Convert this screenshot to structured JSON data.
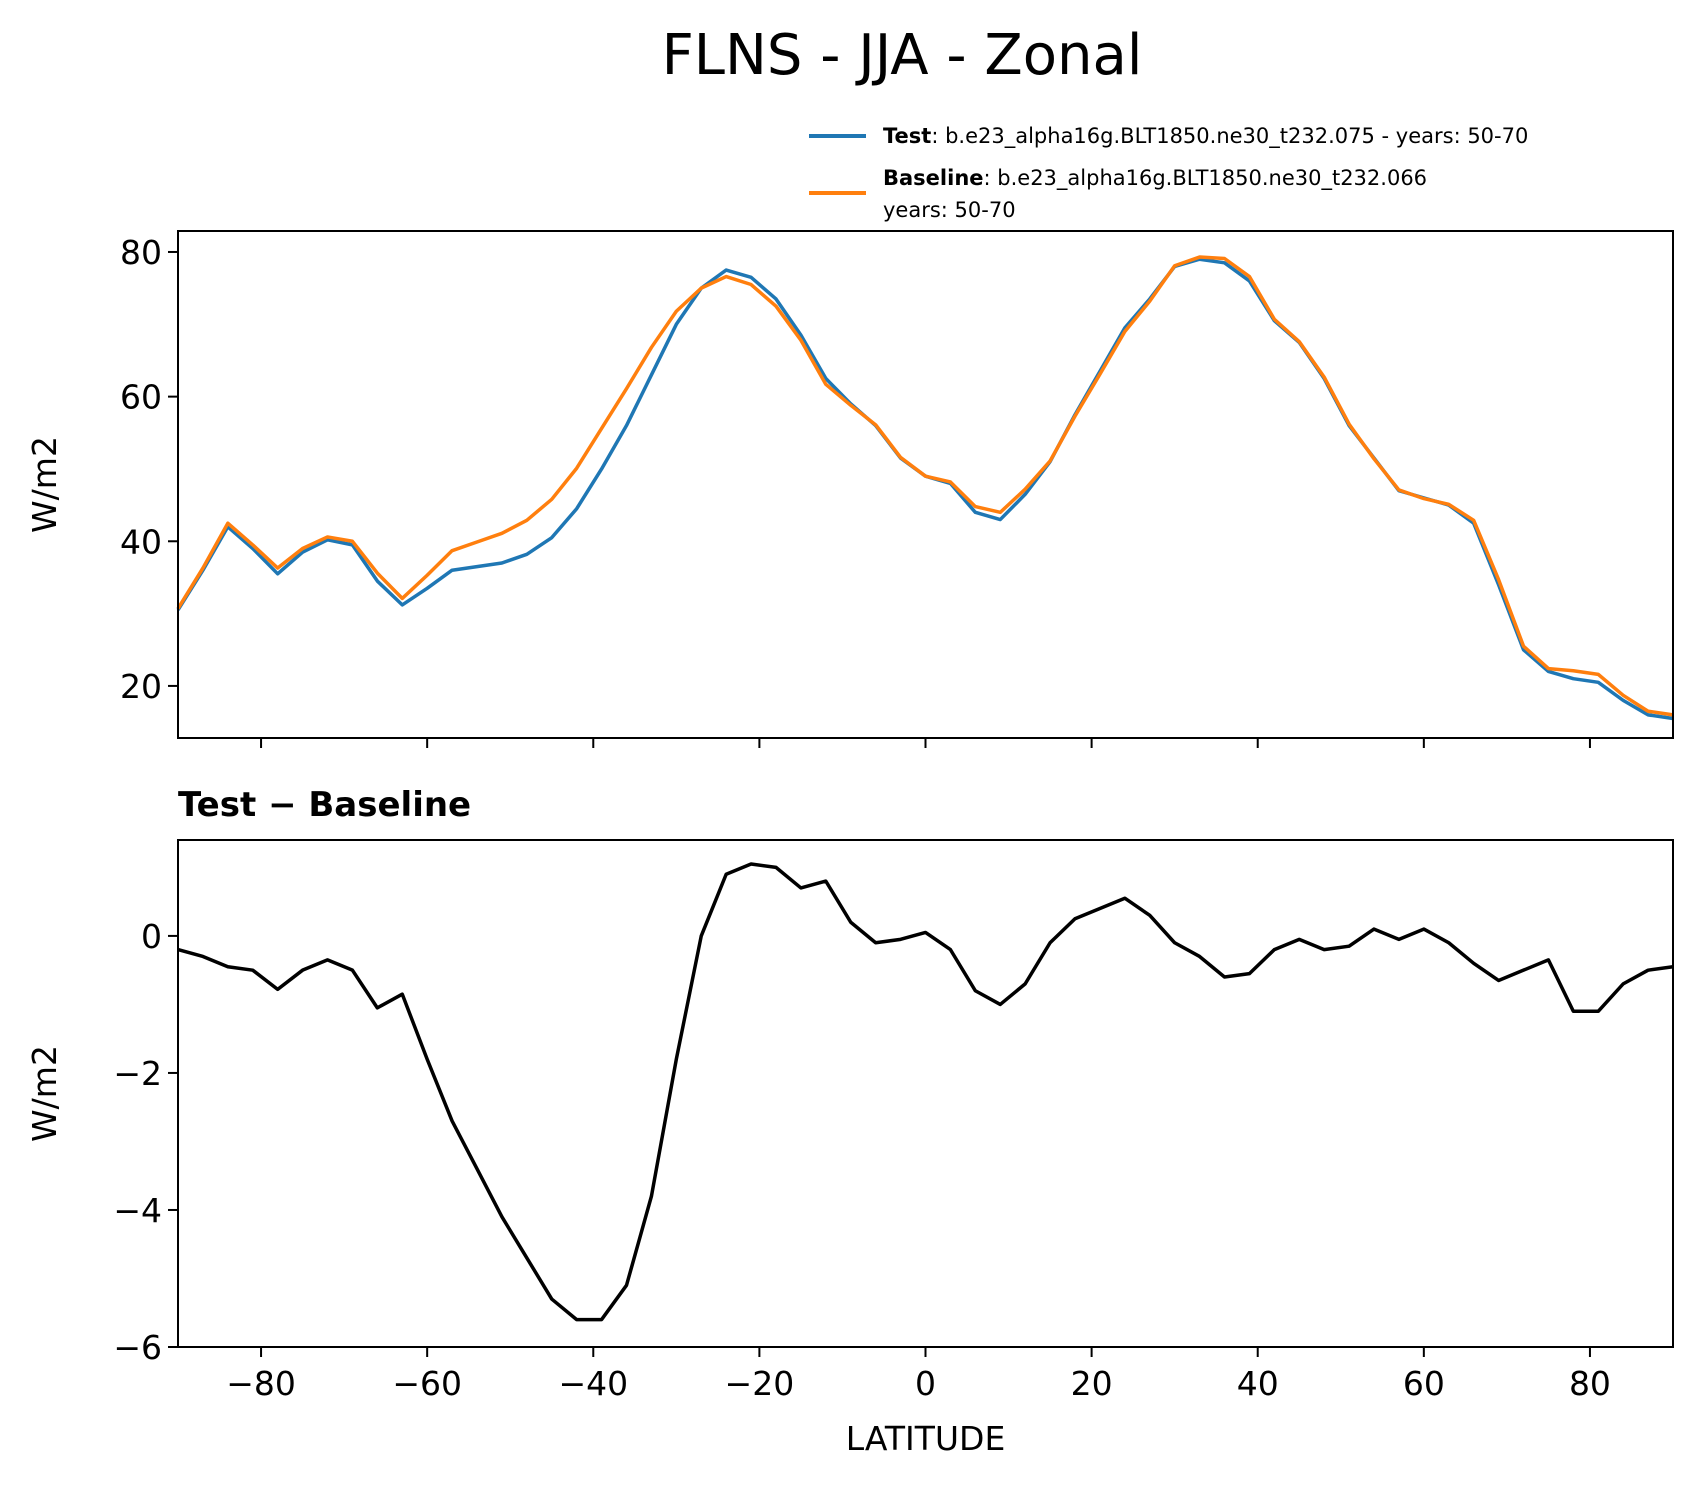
{
  "title": "FLNS - JJA - Zonal",
  "chart_data": [
    {
      "type": "line",
      "ylabel": "W/m2",
      "x": [
        -90,
        -87,
        -84,
        -81,
        -78,
        -75,
        -72,
        -69,
        -66,
        -63,
        -60,
        -57,
        -54,
        -51,
        -48,
        -45,
        -42,
        -39,
        -36,
        -33,
        -30,
        -27,
        -24,
        -21,
        -18,
        -15,
        -12,
        -9,
        -6,
        -3,
        0,
        3,
        6,
        9,
        12,
        15,
        18,
        21,
        24,
        27,
        30,
        33,
        36,
        39,
        42,
        45,
        48,
        51,
        54,
        57,
        60,
        63,
        66,
        69,
        72,
        75,
        78,
        81,
        84,
        87,
        90
      ],
      "xlim": [
        -90,
        90
      ],
      "xticks": [
        -80,
        -60,
        -40,
        -20,
        0,
        20,
        40,
        60,
        80
      ],
      "ylim": [
        12.8,
        82.9
      ],
      "yticks": [
        20,
        40,
        60,
        80
      ],
      "series": [
        {
          "name": "Test",
          "label_lines": [
            ": b.e23_alpha16g.BLT1850.ne30_t232.075 - years: 50-70"
          ],
          "color": "#1f77b4",
          "values": [
            30.5,
            36,
            42,
            39,
            35.5,
            38.5,
            40.2,
            39.5,
            34.5,
            31.2,
            33.5,
            36,
            36.5,
            37,
            38.2,
            40.5,
            44.5,
            50,
            56,
            63,
            70,
            75,
            77.5,
            76.5,
            73.5,
            68.5,
            62.5,
            59,
            56,
            51.5,
            49,
            48,
            44,
            43,
            46.5,
            51,
            57.5,
            63.5,
            69.5,
            73.5,
            78,
            79,
            78.5,
            76,
            70.5,
            67.5,
            62.5,
            56,
            51.5,
            47,
            46,
            45,
            42.5,
            34,
            25,
            22,
            21,
            20.5,
            18,
            16,
            15.5
          ]
        },
        {
          "name": "Baseline",
          "label_lines": [
            ": b.e23_alpha16g.BLT1850.ne30_t232.066",
            "years: 50-70"
          ],
          "color": "#ff7f0e",
          "values": [
            30.7,
            36.3,
            42.5,
            39.5,
            36.3,
            39,
            40.6,
            40,
            35.6,
            32.1,
            35.3,
            38.7,
            39.9,
            41.1,
            42.9,
            45.8,
            50.1,
            55.6,
            61.1,
            66.8,
            71.8,
            75,
            76.6,
            75.5,
            72.5,
            67.8,
            61.7,
            58.8,
            56.1,
            51.6,
            49,
            48.2,
            44.8,
            44,
            47.2,
            51.1,
            57.3,
            63.1,
            69,
            73.2,
            78.1,
            79.3,
            79.1,
            76.6,
            70.7,
            67.6,
            62.7,
            56.2,
            51.4,
            47.1,
            45.9,
            45.1,
            42.9,
            34.7,
            25.5,
            22.4,
            22.1,
            21.6,
            18.7,
            16.5,
            16
          ]
        }
      ]
    },
    {
      "type": "line",
      "title": "Test − Baseline",
      "xlabel": "LATITUDE",
      "ylabel": "W/m2",
      "x": [
        -90,
        -87,
        -84,
        -81,
        -78,
        -75,
        -72,
        -69,
        -66,
        -63,
        -60,
        -57,
        -54,
        -51,
        -48,
        -45,
        -42,
        -39,
        -36,
        -33,
        -30,
        -27,
        -24,
        -21,
        -18,
        -15,
        -12,
        -9,
        -6,
        -3,
        0,
        3,
        6,
        9,
        12,
        15,
        18,
        21,
        24,
        27,
        30,
        33,
        36,
        39,
        42,
        45,
        48,
        51,
        54,
        57,
        60,
        63,
        66,
        69,
        72,
        75,
        78,
        81,
        84,
        87,
        90
      ],
      "xlim": [
        -90,
        90
      ],
      "xticks": [
        {
          "value": -80,
          "label": "−80"
        },
        {
          "value": -60,
          "label": "−60"
        },
        {
          "value": -40,
          "label": "−40"
        },
        {
          "value": -20,
          "label": "−20"
        },
        0,
        20,
        40,
        60,
        80
      ],
      "ylim": [
        -6,
        1.4
      ],
      "yticks": [
        {
          "value": -6,
          "label": "−6"
        },
        {
          "value": -4,
          "label": "−4"
        },
        {
          "value": -2,
          "label": "−2"
        },
        0
      ],
      "series": [
        {
          "color": "#000000",
          "values": [
            -0.2,
            -0.3,
            -0.45,
            -0.5,
            -0.78,
            -0.5,
            -0.35,
            -0.5,
            -1.05,
            -0.85,
            -1.8,
            -2.7,
            -3.4,
            -4.1,
            -4.7,
            -5.3,
            -5.6,
            -5.6,
            -5.1,
            -3.8,
            -1.8,
            0,
            0.9,
            1.05,
            1,
            0.7,
            0.8,
            0.2,
            -0.1,
            -0.05,
            0.05,
            -0.2,
            -0.8,
            -1,
            -0.7,
            -0.1,
            0.25,
            0.4,
            0.55,
            0.3,
            -0.1,
            -0.3,
            -0.6,
            -0.55,
            -0.2,
            -0.05,
            -0.2,
            -0.15,
            0.1,
            -0.05,
            0.1,
            -0.1,
            -0.4,
            -0.65,
            -0.5,
            -0.35,
            -1.1,
            -1.1,
            -0.7,
            -0.5,
            -0.45
          ]
        }
      ]
    }
  ]
}
